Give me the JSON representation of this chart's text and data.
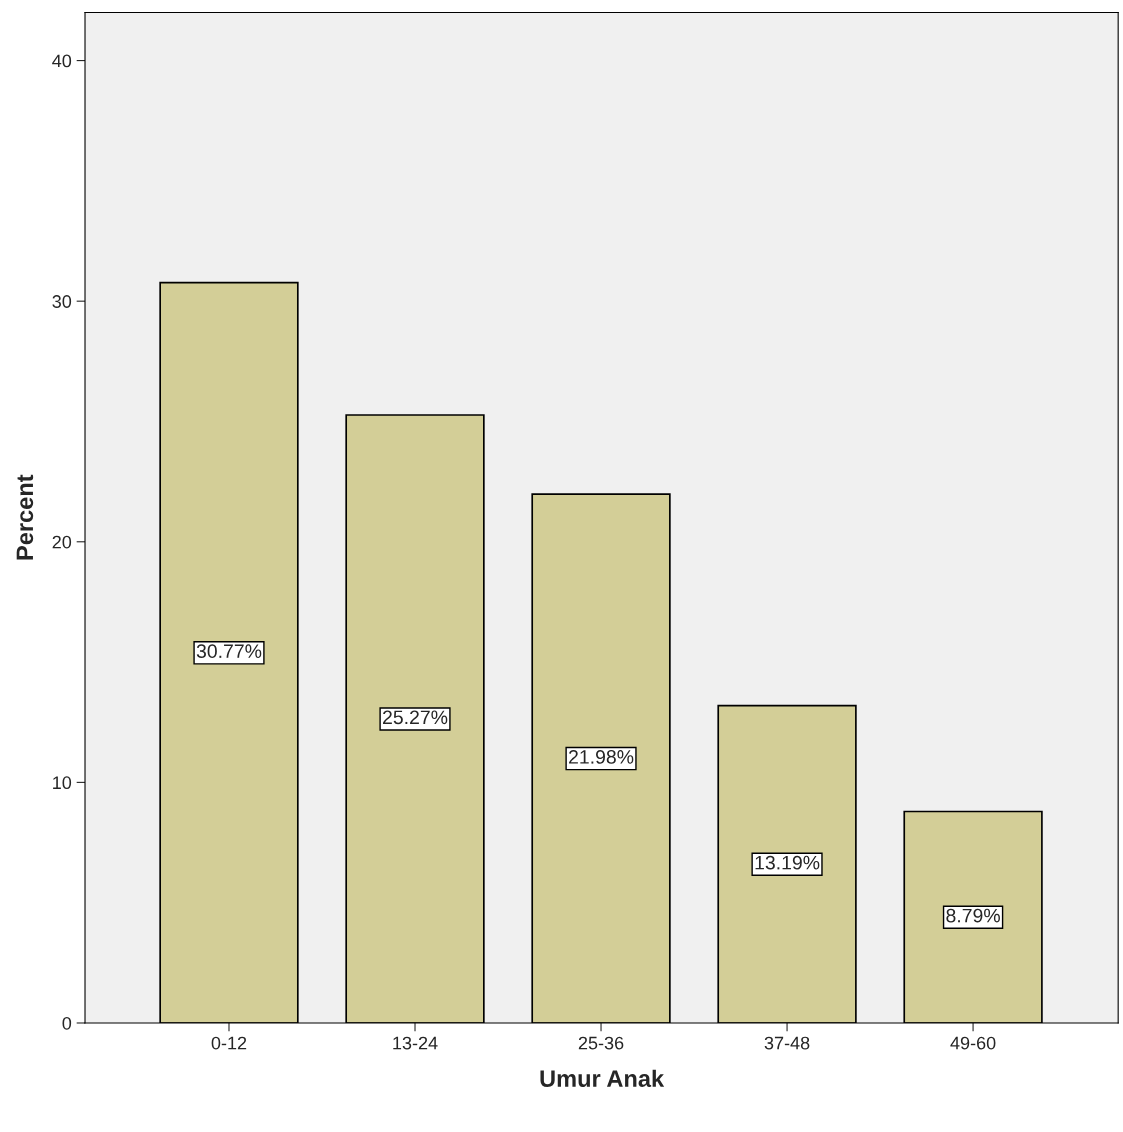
{
  "chart_data": {
    "type": "bar",
    "xlabel": "Umur Anak",
    "ylabel": "Percent",
    "categories": [
      "0-12",
      "13-24",
      "25-36",
      "37-48",
      "49-60"
    ],
    "values": [
      30.77,
      25.27,
      21.98,
      13.19,
      8.79
    ],
    "value_labels": [
      "30.77%",
      "25.27%",
      "21.98%",
      "13.19%",
      "8.79%"
    ],
    "color": "#d3ce97",
    "ylim": [
      0,
      42
    ],
    "yticks": [
      0,
      10,
      20,
      30,
      40
    ],
    "grid": false
  }
}
